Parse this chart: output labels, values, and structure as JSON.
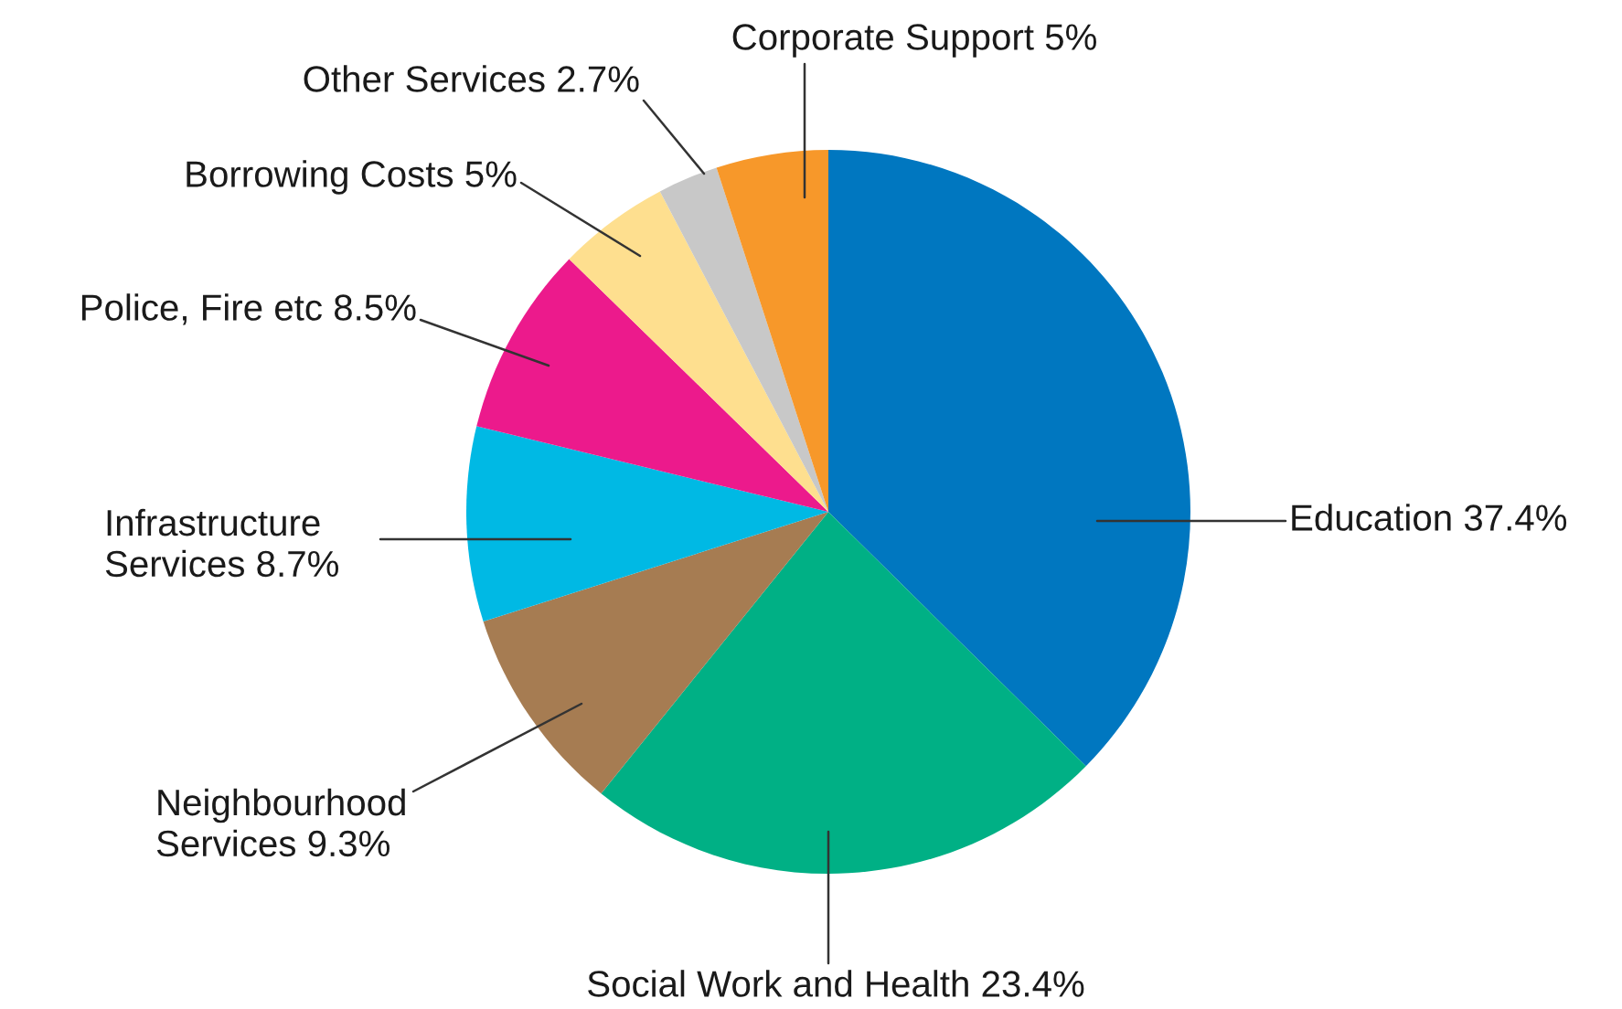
{
  "chart_data": {
    "type": "pie",
    "categories": [
      "Education",
      "Social Work and Health",
      "Neighbourhood Services",
      "Infrastructure Services",
      "Police, Fire etc",
      "Borrowing Costs",
      "Other Services",
      "Corporate Support"
    ],
    "values": [
      37.4,
      23.4,
      9.3,
      8.7,
      8.5,
      5,
      2.7,
      5
    ],
    "value_labels": [
      "37.4%",
      "23.4%",
      "9.3%",
      "8.7%",
      "8.5%",
      "5%",
      "2.7%",
      "5%"
    ],
    "colors": [
      "#0077c0",
      "#00b085",
      "#a67c52",
      "#00b9e4",
      "#ec1a8c",
      "#fedf8f",
      "#c8c8c8",
      "#f7982a"
    ]
  }
}
